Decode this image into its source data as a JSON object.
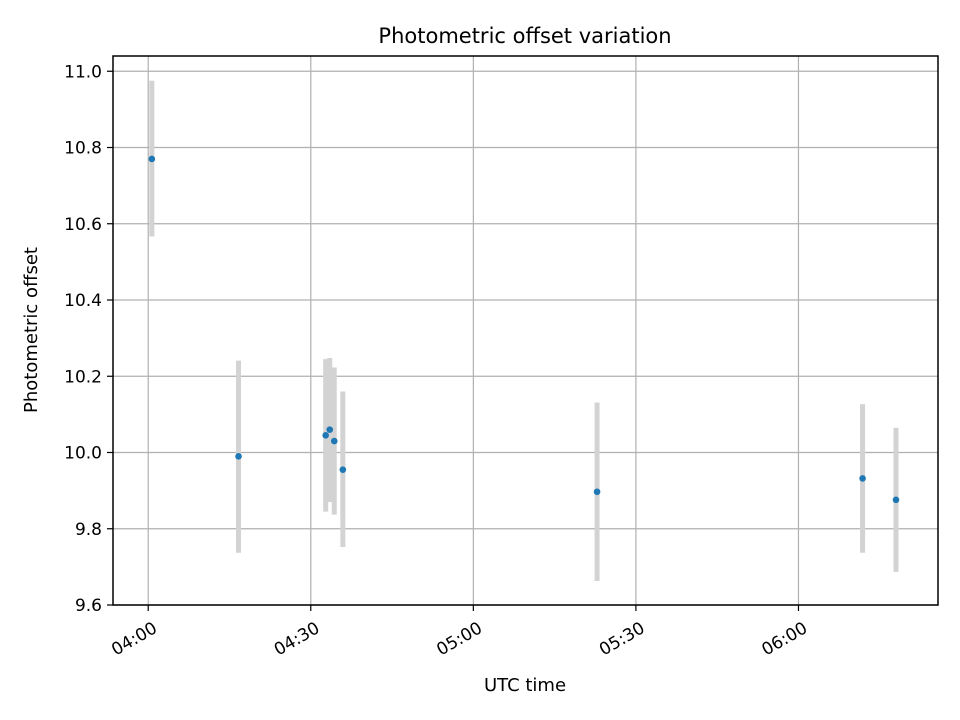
{
  "chart_data": {
    "type": "scatter",
    "title": "Photometric offset variation",
    "xlabel": "UTC time",
    "ylabel": "Photometric offset",
    "x_axis": {
      "kind": "time",
      "min": "03:53:30",
      "max": "06:25:45",
      "ticks": [
        "04:00",
        "04:30",
        "05:00",
        "05:30",
        "06:00"
      ]
    },
    "y_axis": {
      "min": 9.6,
      "max": 11.04,
      "ticks": [
        "9.6",
        "9.8",
        "10.0",
        "10.2",
        "10.4",
        "10.6",
        "10.8",
        "11.0"
      ]
    },
    "grid": true,
    "points": [
      {
        "time": "04:00:40",
        "y": 10.77,
        "yerr_low": 10.567,
        "yerr_high": 10.975
      },
      {
        "time": "04:16:40",
        "y": 9.99,
        "yerr_low": 9.737,
        "yerr_high": 10.241
      },
      {
        "time": "04:32:45",
        "y": 10.045,
        "yerr_low": 9.845,
        "yerr_high": 10.245
      },
      {
        "time": "04:33:30",
        "y": 10.06,
        "yerr_low": 9.87,
        "yerr_high": 10.248
      },
      {
        "time": "04:34:20",
        "y": 10.03,
        "yerr_low": 9.837,
        "yerr_high": 10.223
      },
      {
        "time": "04:35:55",
        "y": 9.955,
        "yerr_low": 9.752,
        "yerr_high": 10.16
      },
      {
        "time": "05:22:50",
        "y": 9.897,
        "yerr_low": 9.663,
        "yerr_high": 10.131
      },
      {
        "time": "06:11:50",
        "y": 9.932,
        "yerr_low": 9.737,
        "yerr_high": 10.127
      },
      {
        "time": "06:18:00",
        "y": 9.876,
        "yerr_low": 9.687,
        "yerr_high": 10.065
      }
    ],
    "colors": {
      "point": "#1f77b4",
      "errorbar": "#d3d3d3",
      "grid": "#b0b0b0",
      "axis": "#000000"
    }
  }
}
